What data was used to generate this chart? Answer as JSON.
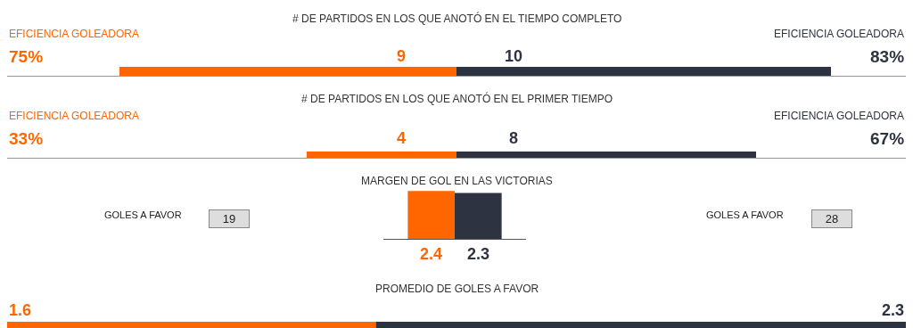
{
  "chart_data": [
    {
      "type": "bar",
      "orientation": "horizontal",
      "stacked": true,
      "title": "# DE PARTIDOS EN LOS QUE ANOTÓ EN EL TIEMPO COMPLETO",
      "categories": [
        null
      ],
      "data_labels": true,
      "series": [
        {
          "color": "#ff6600",
          "values": [
            9
          ]
        },
        {
          "color": "#2d3340",
          "values": [
            10
          ]
        }
      ],
      "annotations": [
        "EFICIENCIA GOLEADORA",
        "EFICIENCIA GOLEADORA",
        "75%",
        "83%"
      ]
    },
    {
      "type": "bar",
      "orientation": "horizontal",
      "stacked": true,
      "title": "# DE PARTIDOS EN LOS QUE ANOTÓ EN EL PRIMER TIEMPO",
      "categories": [
        null
      ],
      "data_labels": true,
      "series": [
        {
          "color": "#ff6600",
          "values": [
            4
          ]
        },
        {
          "color": "#2d3340",
          "values": [
            8
          ]
        }
      ],
      "annotations": [
        "EFICIENCIA GOLEADORA",
        "EFICIENCIA GOLEADORA",
        "33%",
        "67%"
      ]
    },
    {
      "type": "bar",
      "title": "MARGEN DE GOL EN LAS VICTORIAS",
      "categories": [
        null,
        null
      ],
      "values": [
        2.4,
        2.3
      ],
      "colors": [
        "#ff6600",
        "#2d3340"
      ],
      "ylim": [
        0,
        2.5
      ],
      "data_labels": true,
      "annotations": [
        "GOLES A FAVOR",
        "19",
        "GOLES A FAVOR",
        "28"
      ]
    },
    {
      "type": "bar",
      "orientation": "horizontal",
      "stacked": true,
      "title": "PROMEDIO DE GOLES A FAVOR",
      "categories": [
        null
      ],
      "xlim": [
        0,
        3.9
      ],
      "data_labels": true,
      "series": [
        {
          "color": "#ff6600",
          "values": [
            1.6
          ]
        },
        {
          "color": "#2d3340",
          "values": [
            2.3
          ]
        }
      ]
    }
  ]
}
